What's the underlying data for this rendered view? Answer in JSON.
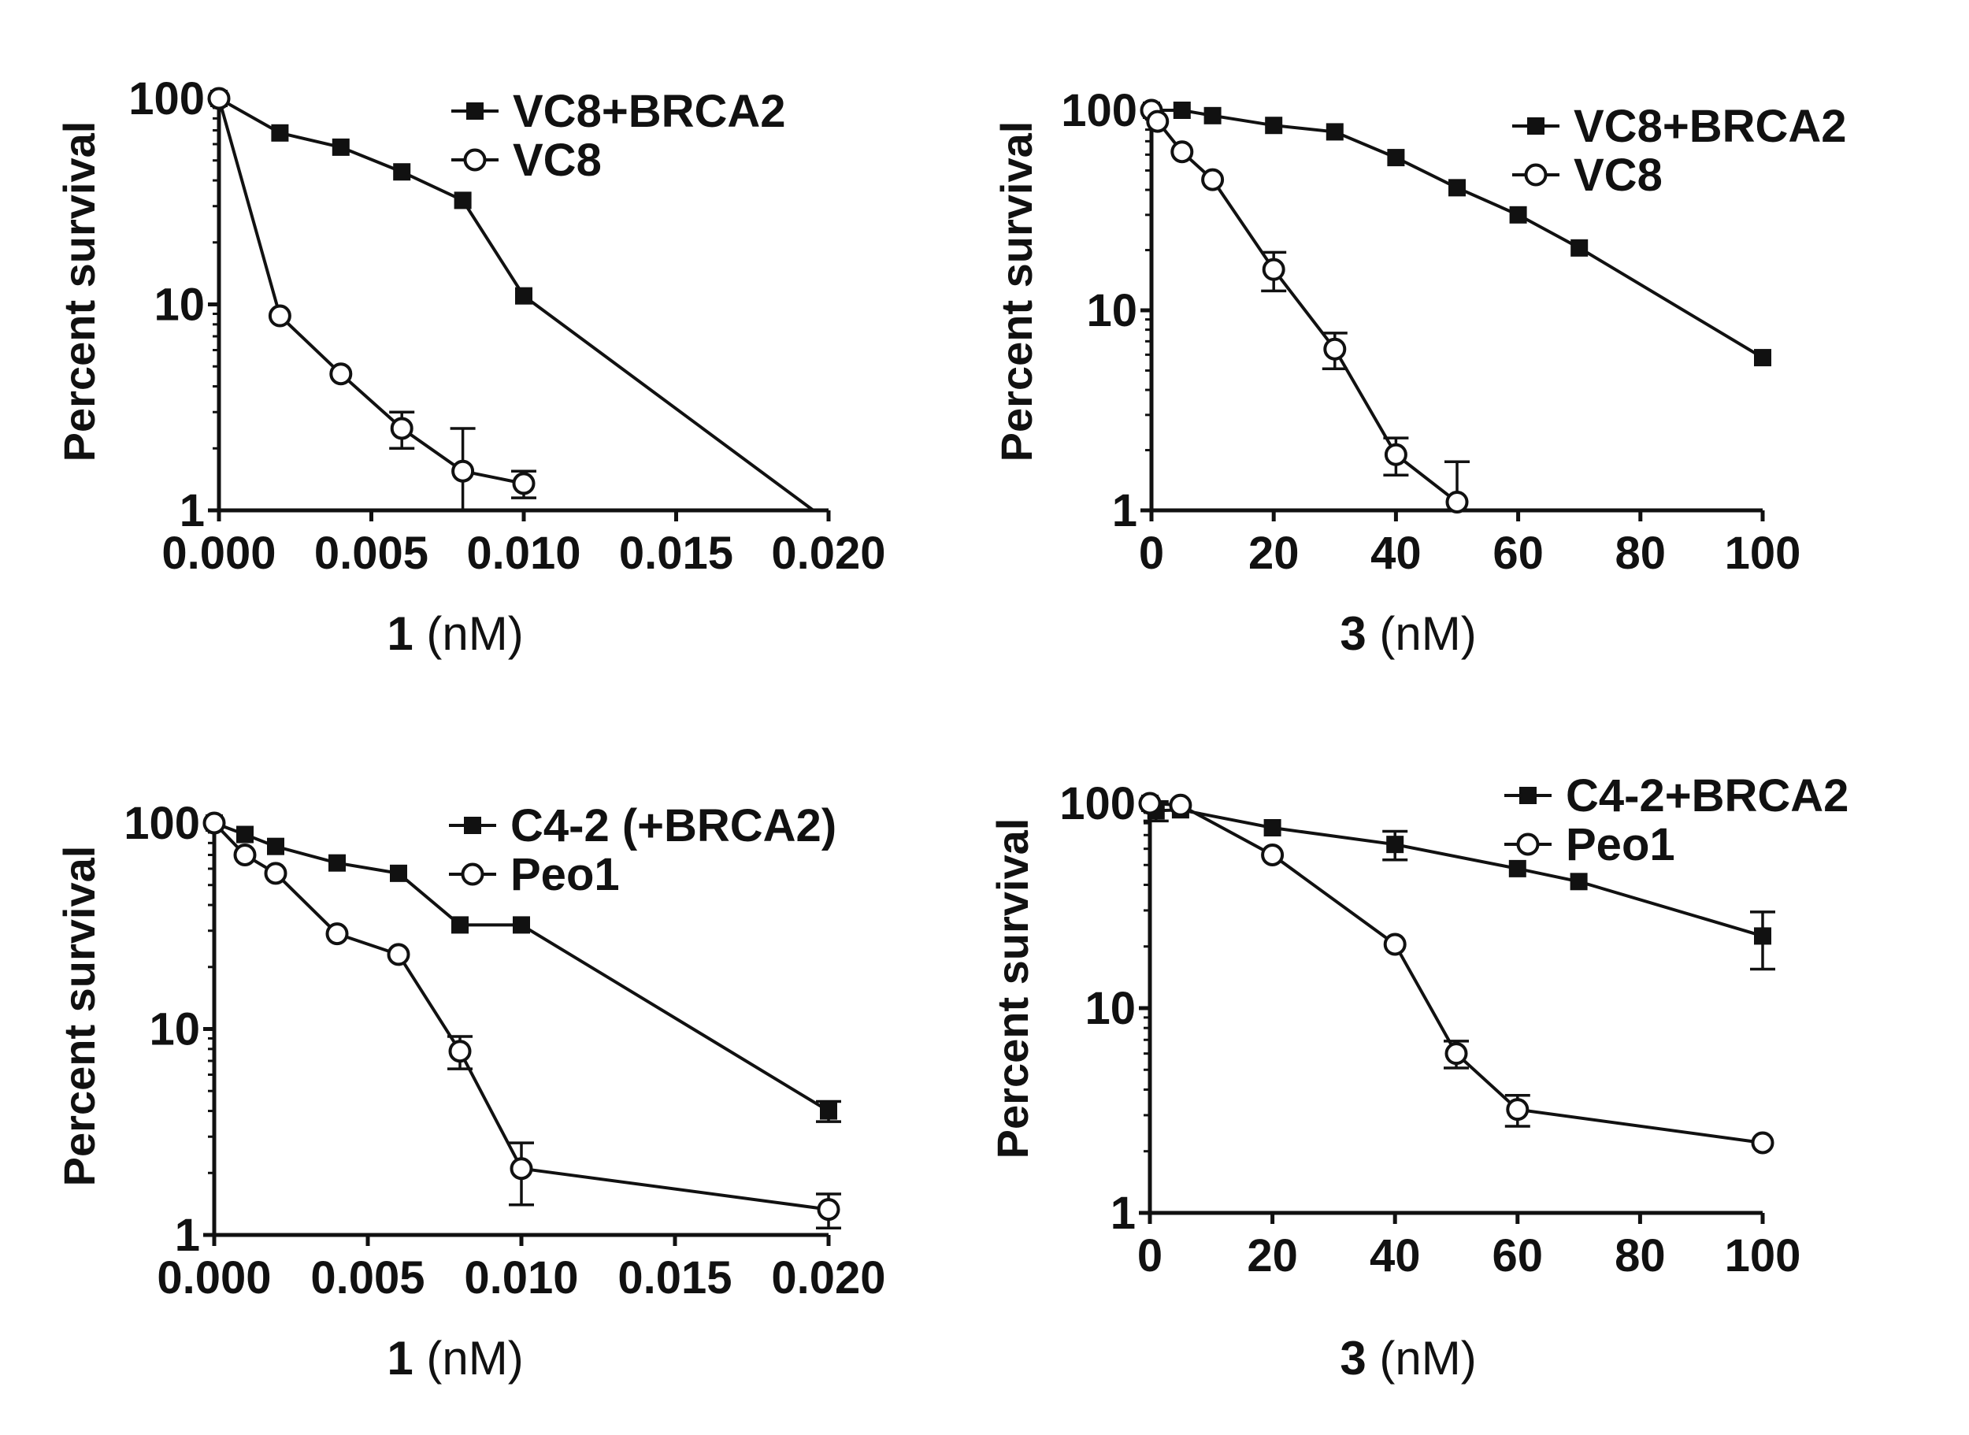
{
  "chart_data": [
    {
      "type": "line",
      "title": "",
      "xlabel": "1",
      "xlabel_unit": " (nM)",
      "ylabel": "Percent survival",
      "xlim": [
        0,
        0.02
      ],
      "ylim": [
        1,
        100
      ],
      "yscale": "log",
      "xticks": [
        "0.000",
        "0.005",
        "0.010",
        "0.015",
        "0.020"
      ],
      "xtick_values": [
        0,
        0.005,
        0.01,
        0.015,
        0.02
      ],
      "yticks": [
        "1",
        "10",
        "100"
      ],
      "ytick_values": [
        1,
        10,
        100
      ],
      "grid": false,
      "legend_position": "top-right",
      "series": [
        {
          "name": "VC8+BRCA2",
          "marker": "filled-square",
          "x": [
            0,
            0.002,
            0.004,
            0.006,
            0.008,
            0.01,
            0.0195
          ],
          "y": [
            100,
            68,
            58,
            44,
            32,
            11,
            1
          ],
          "err": [
            0,
            0,
            0,
            0,
            0,
            0,
            0
          ],
          "markers": [
            true,
            true,
            true,
            true,
            true,
            true,
            false
          ]
        },
        {
          "name": "VC8",
          "marker": "open-circle",
          "x": [
            0,
            0.002,
            0.004,
            0.006,
            0.008,
            0.01
          ],
          "y": [
            100,
            8.8,
            4.6,
            2.5,
            1.55,
            1.35
          ],
          "err": [
            0,
            0,
            0,
            0.5,
            0.95,
            0.2
          ],
          "markers": [
            true,
            true,
            true,
            true,
            true,
            true
          ]
        }
      ]
    },
    {
      "type": "line",
      "title": "",
      "xlabel": "3",
      "xlabel_unit": " (nM)",
      "ylabel": "Percent survival",
      "xlim": [
        0,
        100
      ],
      "ylim": [
        1,
        100
      ],
      "yscale": "log",
      "xticks": [
        "0",
        "20",
        "40",
        "60",
        "80",
        "100"
      ],
      "xtick_values": [
        0,
        20,
        40,
        60,
        80,
        100
      ],
      "yticks": [
        "1",
        "10",
        "100"
      ],
      "ytick_values": [
        1,
        10,
        100
      ],
      "grid": false,
      "legend_position": "top-right",
      "series": [
        {
          "name": "VC8+BRCA2",
          "marker": "filled-square",
          "x": [
            0,
            5,
            10,
            20,
            30,
            40,
            50,
            60,
            70,
            100
          ],
          "y": [
            100,
            100,
            94,
            84,
            78,
            58,
            41,
            30,
            20.5,
            5.8
          ],
          "err": [
            0,
            0,
            0,
            0,
            0,
            0,
            0,
            0,
            0,
            0
          ],
          "markers": [
            true,
            true,
            true,
            true,
            true,
            true,
            true,
            true,
            true,
            true
          ]
        },
        {
          "name": "VC8",
          "marker": "open-circle",
          "x": [
            0,
            1,
            5,
            10,
            20,
            30,
            40,
            50
          ],
          "y": [
            100,
            88,
            62,
            45,
            16,
            6.4,
            1.9,
            1.1
          ],
          "err": [
            0,
            0,
            0,
            0,
            3.5,
            1.3,
            0.4,
            0.65
          ],
          "markers": [
            true,
            true,
            true,
            true,
            true,
            true,
            true,
            true
          ]
        }
      ]
    },
    {
      "type": "line",
      "title": "",
      "xlabel": "1",
      "xlabel_unit": " (nM)",
      "ylabel": "Percent survival",
      "xlim": [
        0,
        0.02
      ],
      "ylim": [
        1,
        100
      ],
      "yscale": "log",
      "xticks": [
        "0.000",
        "0.005",
        "0.010",
        "0.015",
        "0.020"
      ],
      "xtick_values": [
        0,
        0.005,
        0.01,
        0.015,
        0.02
      ],
      "yticks": [
        "1",
        "10",
        "100"
      ],
      "ytick_values": [
        1,
        10,
        100
      ],
      "grid": false,
      "legend_position": "top-right",
      "series": [
        {
          "name": "C4-2 (+BRCA2)",
          "marker": "filled-square",
          "x": [
            0,
            0.001,
            0.002,
            0.004,
            0.006,
            0.008,
            0.01,
            0.02
          ],
          "y": [
            100,
            88,
            77,
            64,
            57,
            32,
            32,
            4
          ],
          "err": [
            0,
            0,
            0,
            0,
            0,
            0,
            0,
            0.45
          ],
          "markers": [
            true,
            true,
            true,
            true,
            true,
            true,
            true,
            true
          ]
        },
        {
          "name": "Peo1",
          "marker": "open-circle",
          "x": [
            0,
            0.001,
            0.002,
            0.004,
            0.006,
            0.008,
            0.01,
            0.02
          ],
          "y": [
            100,
            70,
            57,
            29,
            23,
            7.8,
            2.1,
            1.33
          ],
          "err": [
            0,
            0,
            0,
            0,
            0,
            1.4,
            0.7,
            0.25
          ],
          "markers": [
            true,
            true,
            true,
            true,
            true,
            true,
            true,
            true
          ]
        }
      ]
    },
    {
      "type": "line",
      "title": "",
      "xlabel": "3",
      "xlabel_unit": " (nM)",
      "ylabel": "Percent survival",
      "xlim": [
        0,
        100
      ],
      "ylim": [
        1,
        100
      ],
      "yscale": "log",
      "xticks": [
        "0",
        "20",
        "40",
        "60",
        "80",
        "100"
      ],
      "xtick_values": [
        0,
        20,
        40,
        60,
        80,
        100
      ],
      "yticks": [
        "1",
        "10",
        "100"
      ],
      "ytick_values": [
        1,
        10,
        100
      ],
      "grid": false,
      "legend_position": "top-right",
      "series": [
        {
          "name": "C4-2+BRCA2",
          "marker": "filled-square",
          "x": [
            0,
            1,
            5,
            20,
            40,
            60,
            70,
            100
          ],
          "y": [
            100,
            92,
            93,
            76,
            63,
            48,
            41.5,
            22.5
          ],
          "err": [
            0,
            10,
            0,
            0,
            10,
            0,
            0,
            7
          ],
          "markers": [
            true,
            true,
            true,
            true,
            true,
            true,
            true,
            true
          ]
        },
        {
          "name": "Peo1",
          "marker": "open-circle",
          "x": [
            0,
            5,
            20,
            40,
            50,
            60,
            100
          ],
          "y": [
            100,
            98,
            56,
            20.5,
            6,
            3.2,
            2.2
          ],
          "err": [
            0,
            0,
            0,
            0,
            0.9,
            0.55,
            0
          ],
          "markers": [
            true,
            true,
            true,
            true,
            true,
            true,
            true
          ]
        }
      ]
    }
  ]
}
